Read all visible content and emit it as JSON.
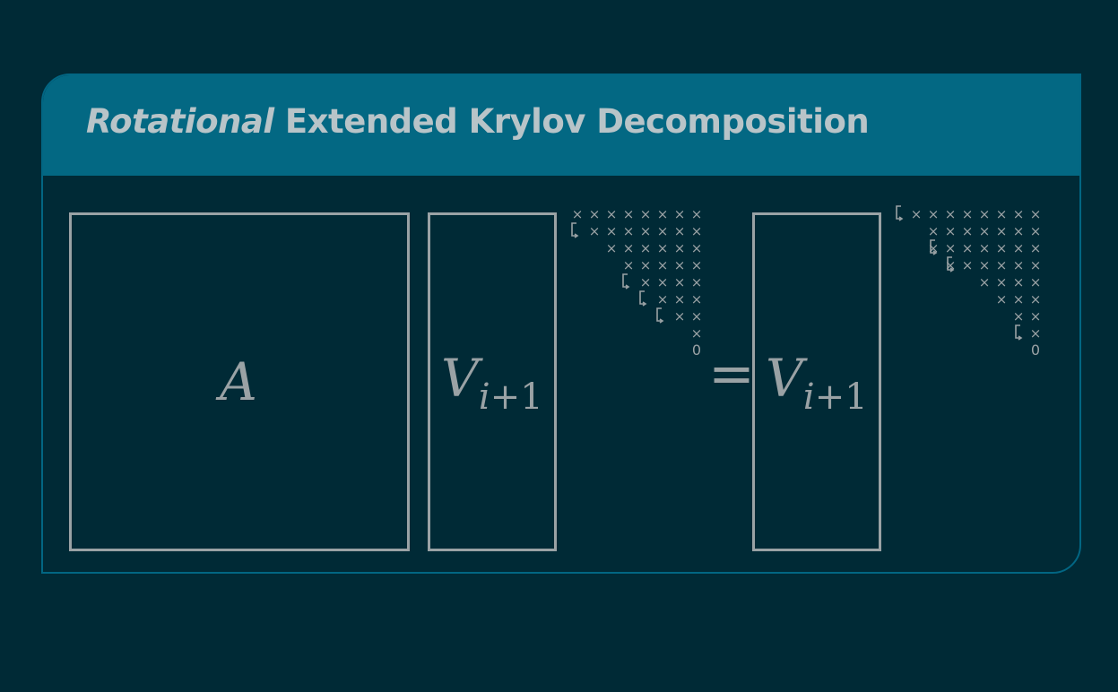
{
  "title": {
    "italic": "Rotational",
    "rest": " Extended Krylov Decomposition"
  },
  "symbols": {
    "A": "A",
    "V": "V",
    "sub_i": "i",
    "sub_rest": "+1",
    "equals": "="
  },
  "matrix_cells": {
    "cross": "×",
    "zero": "0"
  },
  "colors": {
    "background": "#002a36",
    "header": "#036883",
    "border": "#026683",
    "ink": "#9aa2a5",
    "title": "#b8c4c8"
  },
  "icons": [
    "rotator-down-icon",
    "rotator-up-icon"
  ]
}
